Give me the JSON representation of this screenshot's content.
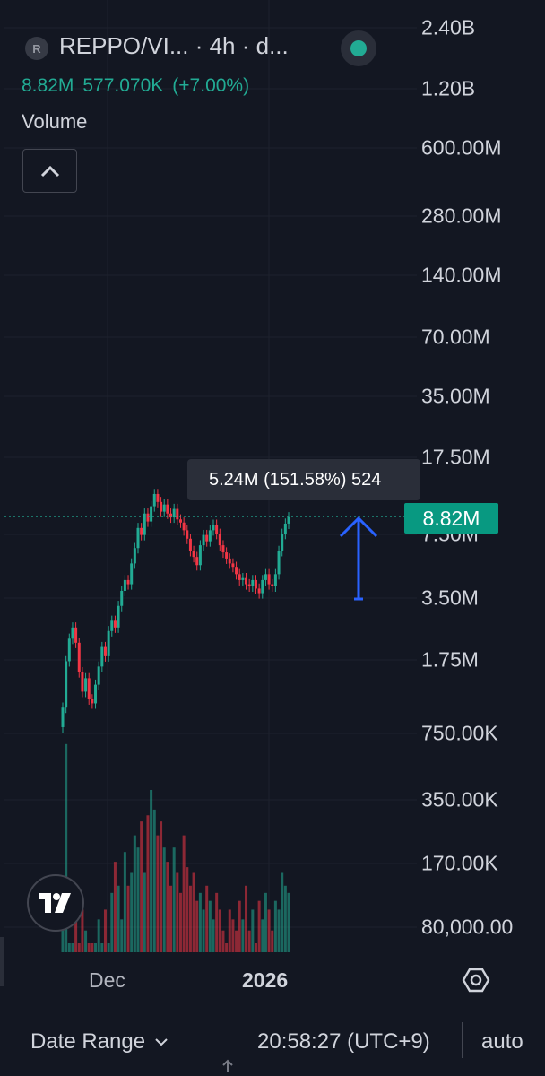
{
  "header": {
    "symbol_badge": "R",
    "symbol_title": "REPPO/VI... · 4h · d...",
    "volume_value": "8.82M",
    "change_abs": "577.070K",
    "change_pct": "(+7.00%)",
    "indicator_label": "Volume"
  },
  "price_tag": "8.82M",
  "measure_tooltip": "5.24M (151.58%) 524",
  "bottom": {
    "date_range_label": "Date Range",
    "clock": "20:58:27 (UTC+9)",
    "auto_label": "auto"
  },
  "colors": {
    "up": "#22ab94",
    "down": "#f23645",
    "accent": "#089981",
    "arrow": "#2962ff",
    "background": "#131722"
  },
  "icons": {
    "logo": "tradingview-logo-icon",
    "settings": "settings-hexagon-icon",
    "collapse": "chevron-up-icon",
    "dropdown": "chevron-down-icon",
    "status": "market-open-dot-icon"
  },
  "chart_data": {
    "type": "line",
    "scale": "log",
    "title": "",
    "y_ticks": [
      "2.40B",
      "1.20B",
      "600.00M",
      "280.00M",
      "140.00M",
      "70.00M",
      "35.00M",
      "17.50M",
      "7.50M",
      "3.50M",
      "1.75M",
      "750.00K",
      "350.00K",
      "170.00K",
      "80,000.00"
    ],
    "x_ticks": [
      "Dec",
      "2026"
    ],
    "last_value": 8820000,
    "ylim": [
      60000,
      2400000000
    ],
    "series": [
      {
        "values": [
          1000000,
          1700000,
          2200000,
          2500000,
          2100000,
          1500000,
          1200000,
          1400000,
          1100000,
          1050000,
          1300000,
          1600000,
          2000000,
          1800000,
          2400000,
          2700000,
          2500000,
          3200000,
          3800000,
          4300000,
          4100000,
          5200000,
          6200000,
          7800000,
          7200000,
          9200000,
          8400000,
          10000000,
          11500000,
          10500000,
          9400000,
          10200000,
          9200000,
          8800000,
          9700000,
          8600000,
          8300000,
          7600000,
          6900000,
          6000000,
          5600000,
          5100000,
          6400000,
          7200000,
          6700000,
          7600000,
          8100000,
          7300000,
          6400000,
          5900000,
          5500000,
          5200000,
          5000000,
          4600000,
          4300000,
          4400000,
          4100000,
          4000000,
          4300000,
          3900000,
          3700000,
          4300000,
          4600000,
          4100000,
          4000000,
          4600000,
          6000000,
          7300000,
          8200000,
          8820000
        ]
      }
    ],
    "volume": {
      "values": [
        50000,
        330000,
        30000,
        25000,
        40000,
        20000,
        45000,
        35000,
        30000,
        25000,
        20000,
        40000,
        30000,
        45000,
        25000,
        55000,
        80000,
        60000,
        40000,
        90000,
        60000,
        70000,
        110000,
        95000,
        130000,
        70000,
        140000,
        190000,
        150000,
        110000,
        130000,
        95000,
        80000,
        60000,
        95000,
        70000,
        55000,
        110000,
        75000,
        60000,
        70000,
        50000,
        55000,
        45000,
        60000,
        50000,
        40000,
        55000,
        45000,
        35000,
        30000,
        45000,
        40000,
        35000,
        50000,
        40000,
        60000,
        35000,
        45000,
        30000,
        50000,
        40000,
        55000,
        45000,
        35000,
        50000,
        45000,
        70000,
        60000,
        55000
      ]
    },
    "measurement": {
      "change": "5.24M",
      "change_pct": "151.58%"
    }
  }
}
